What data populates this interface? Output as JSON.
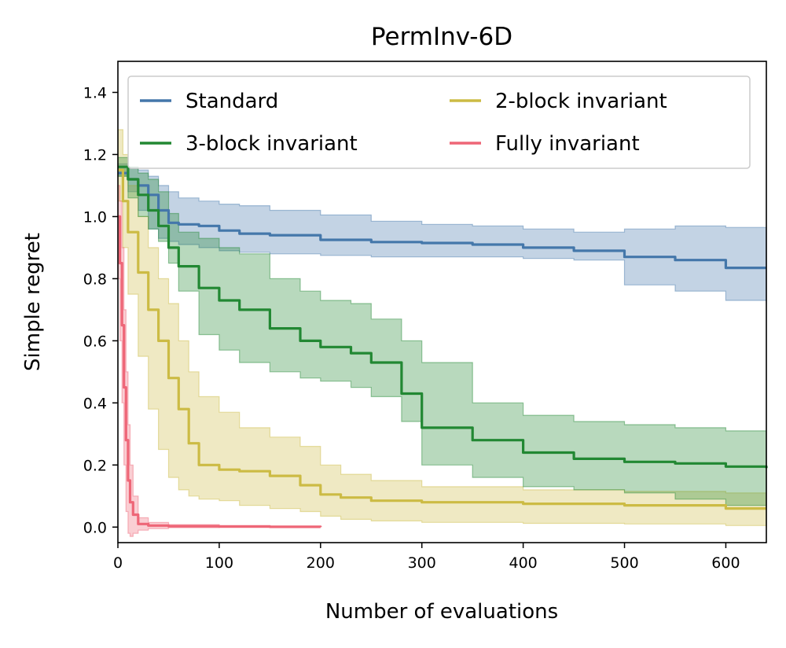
{
  "chart_data": {
    "type": "line",
    "title": "PermInv-6D",
    "xlabel": "Number of evaluations",
    "ylabel": "Simple regret",
    "xlim": [
      0,
      640
    ],
    "ylim": [
      -0.05,
      1.5
    ],
    "xticks": [
      0,
      100,
      200,
      300,
      400,
      500,
      600
    ],
    "yticks": [
      0.0,
      0.2,
      0.4,
      0.6,
      0.8,
      1.0,
      1.2,
      1.4
    ],
    "ytick_labels": [
      "0.0",
      "0.2",
      "0.4",
      "0.6",
      "0.8",
      "1.0",
      "1.2",
      "1.4"
    ],
    "grid": false,
    "legend": {
      "position": "top",
      "columns": 2
    },
    "series": [
      {
        "name": "Standard",
        "color": "#4477aa",
        "x": [
          0,
          10,
          20,
          30,
          40,
          50,
          60,
          80,
          100,
          120,
          150,
          200,
          250,
          300,
          350,
          400,
          450,
          500,
          550,
          600,
          640
        ],
        "y": [
          1.14,
          1.12,
          1.1,
          1.07,
          1.02,
          0.98,
          0.975,
          0.97,
          0.955,
          0.945,
          0.94,
          0.925,
          0.918,
          0.915,
          0.91,
          0.9,
          0.89,
          0.87,
          0.86,
          0.835,
          0.835
        ],
        "lower": [
          1.13,
          1.08,
          1.02,
          0.96,
          0.93,
          0.92,
          0.91,
          0.9,
          0.89,
          0.885,
          0.88,
          0.875,
          0.87,
          0.87,
          0.87,
          0.865,
          0.86,
          0.78,
          0.76,
          0.73,
          0.72
        ],
        "upper": [
          1.17,
          1.16,
          1.15,
          1.13,
          1.1,
          1.08,
          1.06,
          1.05,
          1.04,
          1.035,
          1.02,
          1.005,
          0.985,
          0.975,
          0.97,
          0.96,
          0.95,
          0.96,
          0.97,
          0.965,
          0.96
        ]
      },
      {
        "name": "2-block invariant",
        "color": "#ccbb44",
        "x": [
          0,
          5,
          10,
          20,
          30,
          40,
          50,
          60,
          70,
          80,
          100,
          120,
          150,
          180,
          200,
          220,
          250,
          300,
          400,
          500,
          600,
          640
        ],
        "y": [
          1.15,
          1.05,
          0.95,
          0.82,
          0.7,
          0.6,
          0.48,
          0.38,
          0.27,
          0.2,
          0.185,
          0.18,
          0.165,
          0.135,
          0.105,
          0.095,
          0.085,
          0.08,
          0.075,
          0.07,
          0.06,
          0.06
        ],
        "lower": [
          1.05,
          0.9,
          0.75,
          0.55,
          0.38,
          0.25,
          0.16,
          0.12,
          0.1,
          0.09,
          0.085,
          0.07,
          0.06,
          0.05,
          0.035,
          0.025,
          0.02,
          0.015,
          0.012,
          0.01,
          0.005,
          0.0
        ],
        "upper": [
          1.28,
          1.2,
          1.1,
          1.0,
          0.9,
          0.8,
          0.72,
          0.6,
          0.5,
          0.42,
          0.37,
          0.32,
          0.29,
          0.26,
          0.2,
          0.17,
          0.15,
          0.13,
          0.12,
          0.115,
          0.11,
          0.11
        ]
      },
      {
        "name": "3-block invariant",
        "color": "#228833",
        "x": [
          0,
          10,
          20,
          30,
          40,
          50,
          60,
          80,
          100,
          120,
          150,
          180,
          200,
          230,
          250,
          280,
          300,
          350,
          400,
          450,
          500,
          550,
          600,
          640
        ],
        "y": [
          1.16,
          1.12,
          1.07,
          1.02,
          0.97,
          0.9,
          0.84,
          0.77,
          0.73,
          0.7,
          0.64,
          0.6,
          0.58,
          0.56,
          0.53,
          0.43,
          0.32,
          0.28,
          0.24,
          0.22,
          0.21,
          0.205,
          0.195,
          0.19
        ],
        "lower": [
          1.13,
          1.06,
          1.0,
          0.96,
          0.92,
          0.85,
          0.76,
          0.62,
          0.57,
          0.53,
          0.5,
          0.48,
          0.47,
          0.45,
          0.42,
          0.34,
          0.2,
          0.16,
          0.13,
          0.12,
          0.11,
          0.09,
          0.07,
          0.06
        ],
        "upper": [
          1.19,
          1.16,
          1.14,
          1.12,
          1.08,
          1.01,
          0.95,
          0.93,
          0.9,
          0.88,
          0.8,
          0.76,
          0.73,
          0.72,
          0.67,
          0.6,
          0.53,
          0.4,
          0.36,
          0.34,
          0.33,
          0.32,
          0.31,
          0.31
        ]
      },
      {
        "name": "Fully invariant",
        "color": "#ee6677",
        "x": [
          0,
          2,
          4,
          6,
          8,
          10,
          12,
          15,
          20,
          30,
          50,
          100,
          150,
          200
        ],
        "y": [
          1.0,
          0.85,
          0.65,
          0.45,
          0.28,
          0.15,
          0.08,
          0.04,
          0.01,
          0.005,
          0.003,
          0.002,
          0.001,
          0.0
        ],
        "lower": [
          0.8,
          0.6,
          0.4,
          0.2,
          0.05,
          -0.02,
          -0.03,
          -0.02,
          -0.01,
          -0.005,
          -0.002,
          -0.001,
          0.0,
          0.0
        ],
        "upper": [
          1.1,
          1.05,
          0.9,
          0.7,
          0.5,
          0.33,
          0.2,
          0.1,
          0.03,
          0.015,
          0.008,
          0.005,
          0.003,
          0.002
        ]
      }
    ]
  },
  "legend_order": [
    "Standard",
    "2-block invariant",
    "3-block invariant",
    "Fully invariant"
  ]
}
